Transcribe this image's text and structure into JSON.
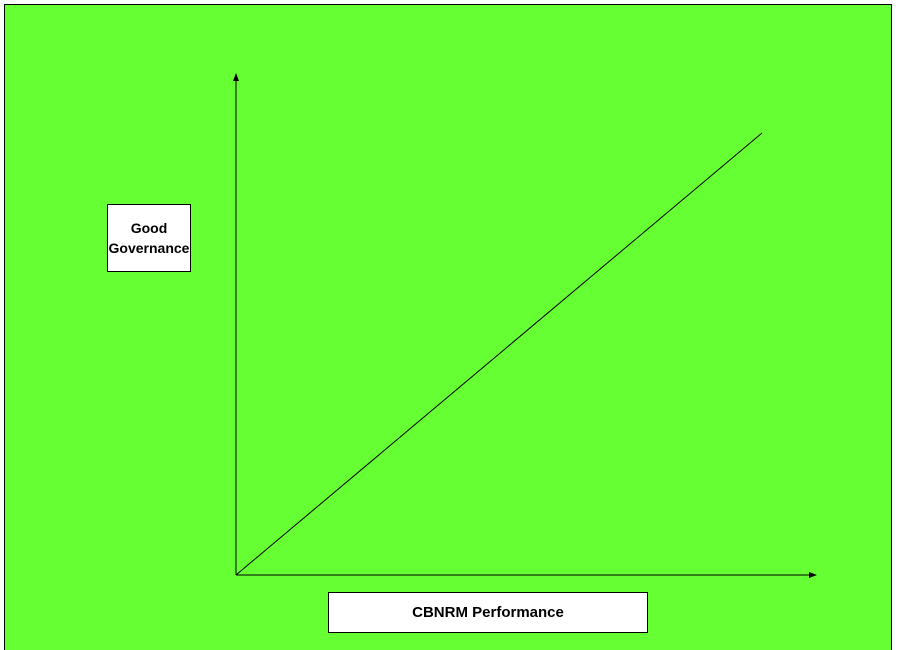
{
  "y_axis": {
    "label": "Good Governance"
  },
  "x_axis": {
    "label": "CBNRM Performance"
  }
}
